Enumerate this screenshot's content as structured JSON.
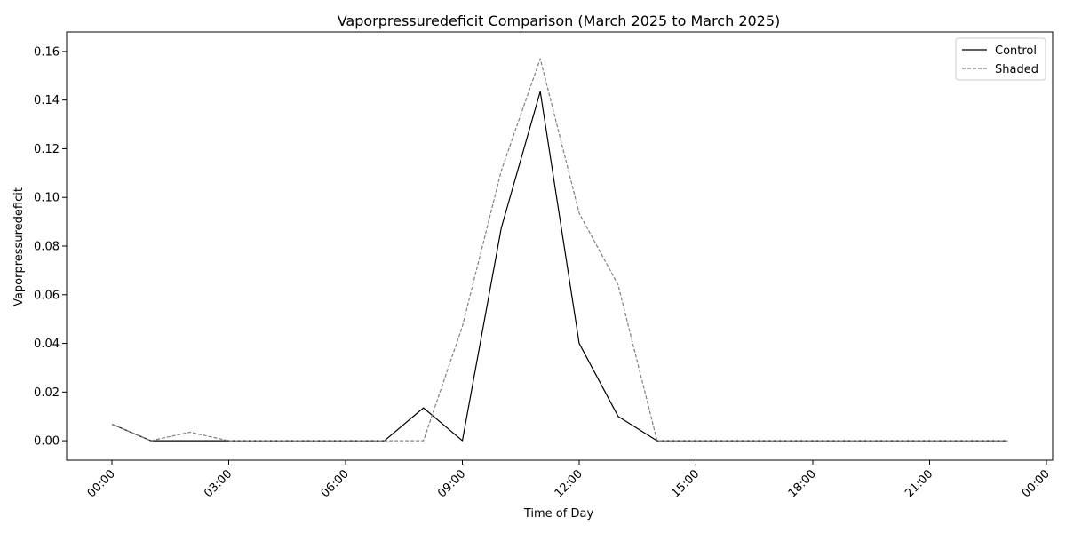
{
  "chart_data": {
    "type": "line",
    "title": "Vaporpressuredeficit Comparison (March 2025 to March 2025)",
    "xlabel": "Time of Day",
    "ylabel": "Vaporpressuredeficit",
    "x": [
      "00:00",
      "01:00",
      "02:00",
      "03:00",
      "04:00",
      "05:00",
      "06:00",
      "07:00",
      "08:00",
      "09:00",
      "10:00",
      "11:00",
      "12:00",
      "13:00",
      "14:00",
      "15:00",
      "16:00",
      "17:00",
      "18:00",
      "19:00",
      "20:00",
      "21:00",
      "22:00",
      "23:00"
    ],
    "xticks": [
      "00:00",
      "03:00",
      "06:00",
      "09:00",
      "12:00",
      "15:00",
      "18:00",
      "21:00",
      "00:00"
    ],
    "yticks": [
      "0.00",
      "0.02",
      "0.04",
      "0.06",
      "0.08",
      "0.10",
      "0.12",
      "0.14",
      "0.16"
    ],
    "ylim": [
      -0.008,
      0.168
    ],
    "grid": false,
    "legend_position": "top-right",
    "series": [
      {
        "name": "Control",
        "color": "#000000",
        "style": "solid",
        "values": [
          0.0068,
          0.0,
          0.0,
          0.0,
          0.0,
          0.0,
          0.0,
          0.0,
          0.0135,
          0.0,
          0.0875,
          0.1435,
          0.04,
          0.01,
          0.0,
          0.0,
          0.0,
          0.0,
          0.0,
          0.0,
          0.0,
          0.0,
          0.0,
          0.0
        ]
      },
      {
        "name": "Shaded",
        "color": "#808080",
        "style": "dashed",
        "values": [
          0.0068,
          0.0,
          0.0035,
          0.0,
          0.0,
          0.0,
          0.0,
          0.0,
          0.0,
          0.047,
          0.111,
          0.157,
          0.0935,
          0.064,
          0.0,
          0.0,
          0.0,
          0.0,
          0.0,
          0.0,
          0.0,
          0.0,
          0.0,
          0.0
        ]
      }
    ]
  }
}
